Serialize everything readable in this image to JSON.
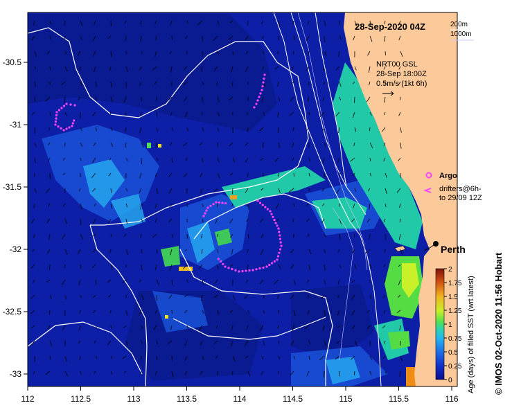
{
  "title": "28-Sep-2020 04Z",
  "isobath_labels": [
    "200m",
    "1000m"
  ],
  "currents": {
    "source": "NRT00 GSL",
    "time": "28-Sep 18:00Z",
    "scale": "0.5m/s (1kt 6h)"
  },
  "legend": {
    "argo_label": "Argo",
    "drifters_label_line1": "drifters@6h-",
    "drifters_label_line2": "to 29/09 12Z",
    "argo_color": "#ff44ff",
    "drifter_color": "#ff44ff"
  },
  "city": {
    "name": "Perth"
  },
  "colorbar": {
    "title": "Age (days) of filled SST (wrt latest)",
    "ticks": [
      "0",
      "0.25",
      "0.5",
      "0.75",
      "1",
      "1.25",
      "1.5",
      "1.75",
      "2"
    ],
    "colors": [
      "#0b0b8c",
      "#1030c8",
      "#1e6ee6",
      "#25b4f0",
      "#2ad2b4",
      "#52e052",
      "#c8f028",
      "#f0b420",
      "#d25014",
      "#7d1408"
    ]
  },
  "axes": {
    "x_ticks": [
      "112",
      "112.5",
      "113",
      "113.5",
      "114",
      "114.5",
      "115",
      "115.5",
      "116"
    ],
    "y_ticks": [
      "-30.5",
      "-31",
      "-31.5",
      "-32",
      "-32.5",
      "-33"
    ]
  },
  "credit": "© IMOS 02-Oct-2020 11:56 Hobart",
  "colors": {
    "ocean": "#0c1fa6",
    "land": "#fcc99a",
    "contour": "#ffffff"
  }
}
